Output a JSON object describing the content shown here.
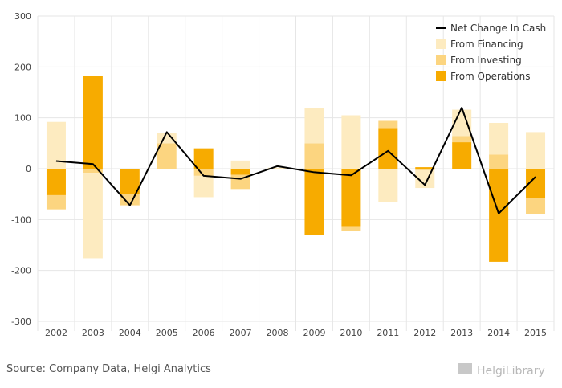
{
  "chart_data": {
    "type": "bar",
    "stacked": true,
    "categories": [
      "2002",
      "2003",
      "2004",
      "2005",
      "2006",
      "2007",
      "2008",
      "2009",
      "2010",
      "2011",
      "2012",
      "2013",
      "2014",
      "2015"
    ],
    "series": [
      {
        "name": "From Operations",
        "color": "#f7ab00",
        "values": [
          -52,
          182,
          -50,
          0,
          40,
          -12,
          0,
          -130,
          -113,
          80,
          3,
          52,
          -183,
          -58
        ]
      },
      {
        "name": "From Investing",
        "color": "#fcd580",
        "values": [
          -28,
          -8,
          -22,
          50,
          -14,
          -28,
          0,
          50,
          -10,
          14,
          -3,
          12,
          28,
          -32
        ]
      },
      {
        "name": "From Financing",
        "color": "#fdebc0",
        "values": [
          92,
          -168,
          0,
          20,
          -42,
          16,
          2,
          70,
          105,
          -65,
          -35,
          52,
          62,
          72
        ]
      }
    ],
    "line": {
      "name": "Net Change In Cash",
      "color": "#000000",
      "values": [
        15,
        9,
        -72,
        72,
        -14,
        -20,
        5,
        -7,
        -13,
        35,
        -32,
        120,
        -88,
        -16
      ]
    },
    "ylim": [
      -300,
      300
    ],
    "yticks": [
      -300,
      -200,
      -100,
      0,
      100,
      200,
      300
    ],
    "title": "",
    "xlabel": "",
    "ylabel": "",
    "grid": true,
    "legend_position": "top-right",
    "legend": [
      "Net Change In Cash",
      "From Financing",
      "From Investing",
      "From Operations"
    ]
  },
  "footer": {
    "source": "Source: Company Data, Helgi Analytics",
    "logo": "HelgiLibrary"
  }
}
